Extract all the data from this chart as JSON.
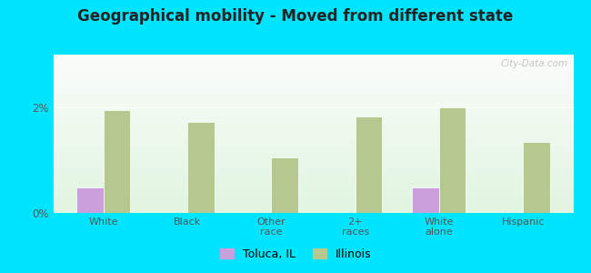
{
  "title": "Geographical mobility - Moved from different state",
  "categories": [
    "White",
    "Black",
    "Other\nrace",
    "2+\nraces",
    "White\nalone",
    "Hispanic"
  ],
  "toluca_values": [
    0.48,
    0.0,
    0.0,
    0.0,
    0.48,
    0.0
  ],
  "illinois_values": [
    1.95,
    1.72,
    1.05,
    1.82,
    2.0,
    1.35
  ],
  "toluca_color": "#c9a0dc",
  "illinois_color": "#b5c98e",
  "bar_width": 0.32,
  "ylim": [
    0,
    3.0
  ],
  "yticks": [
    0,
    2
  ],
  "ytick_labels": [
    "0%",
    "2%"
  ],
  "outer_background": "#00e5ff",
  "title_fontsize": 12,
  "legend_labels": [
    "Toluca, IL",
    "Illinois"
  ],
  "watermark": "City-Data.com"
}
